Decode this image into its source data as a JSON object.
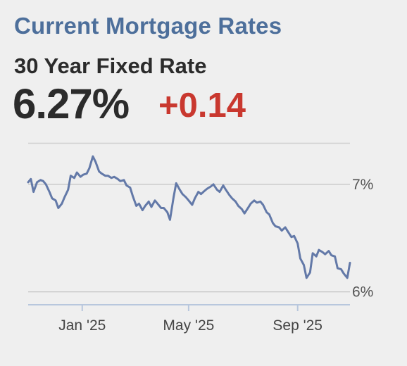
{
  "header": {
    "title": "Current Mortgage Rates",
    "product": "30 Year Fixed Rate",
    "rate": "6.27%",
    "change": "+0.14"
  },
  "colors": {
    "title": "#4d6f9b",
    "change_positive": "#c9382f",
    "line": "#6379a8",
    "text": "#2b2b2b"
  },
  "chart_data": {
    "type": "line",
    "title": "",
    "xlabel": "",
    "ylabel": "",
    "x_tick_labels": [
      "Jan '25",
      "May '25",
      "Sep '25"
    ],
    "x_tick_dates": [
      "2025-01-01",
      "2025-05-01",
      "2025-09-01"
    ],
    "y_tick_labels": [
      "7%",
      "6%"
    ],
    "y_tick_values": [
      7.0,
      6.0
    ],
    "xlim": [
      "2024-11-01",
      "2025-10-30"
    ],
    "ylim": [
      5.88,
      7.34
    ],
    "grid": "horizontal",
    "series": [
      {
        "values": [
          [
            "2024-11-01",
            7.02
          ],
          [
            "2024-11-04",
            7.05
          ],
          [
            "2024-11-07",
            6.93
          ],
          [
            "2024-11-11",
            7.02
          ],
          [
            "2024-11-15",
            7.04
          ],
          [
            "2024-11-18",
            7.03
          ],
          [
            "2024-11-21",
            7.0
          ],
          [
            "2024-11-25",
            6.93
          ],
          [
            "2024-11-28",
            6.87
          ],
          [
            "2024-12-02",
            6.85
          ],
          [
            "2024-12-05",
            6.78
          ],
          [
            "2024-12-09",
            6.82
          ],
          [
            "2024-12-12",
            6.88
          ],
          [
            "2024-12-16",
            6.95
          ],
          [
            "2024-12-19",
            7.08
          ],
          [
            "2024-12-23",
            7.06
          ],
          [
            "2024-12-26",
            7.11
          ],
          [
            "2024-12-30",
            7.07
          ],
          [
            "2025-01-02",
            7.09
          ],
          [
            "2025-01-06",
            7.1
          ],
          [
            "2025-01-09",
            7.15
          ],
          [
            "2025-01-13",
            7.26
          ],
          [
            "2025-01-16",
            7.21
          ],
          [
            "2025-01-20",
            7.12
          ],
          [
            "2025-01-23",
            7.1
          ],
          [
            "2025-01-27",
            7.08
          ],
          [
            "2025-01-30",
            7.08
          ],
          [
            "2025-02-03",
            7.06
          ],
          [
            "2025-02-06",
            7.07
          ],
          [
            "2025-02-10",
            7.05
          ],
          [
            "2025-02-13",
            7.03
          ],
          [
            "2025-02-17",
            7.04
          ],
          [
            "2025-02-20",
            6.99
          ],
          [
            "2025-02-24",
            6.97
          ],
          [
            "2025-02-27",
            6.89
          ],
          [
            "2025-03-03",
            6.8
          ],
          [
            "2025-03-06",
            6.82
          ],
          [
            "2025-03-10",
            6.76
          ],
          [
            "2025-03-13",
            6.8
          ],
          [
            "2025-03-17",
            6.84
          ],
          [
            "2025-03-20",
            6.79
          ],
          [
            "2025-03-24",
            6.85
          ],
          [
            "2025-03-27",
            6.82
          ],
          [
            "2025-03-31",
            6.78
          ],
          [
            "2025-04-03",
            6.78
          ],
          [
            "2025-04-07",
            6.74
          ],
          [
            "2025-04-10",
            6.67
          ],
          [
            "2025-04-14",
            6.88
          ],
          [
            "2025-04-17",
            7.01
          ],
          [
            "2025-04-21",
            6.95
          ],
          [
            "2025-04-24",
            6.91
          ],
          [
            "2025-04-28",
            6.88
          ],
          [
            "2025-05-01",
            6.85
          ],
          [
            "2025-05-05",
            6.81
          ],
          [
            "2025-05-08",
            6.87
          ],
          [
            "2025-05-12",
            6.93
          ],
          [
            "2025-05-15",
            6.91
          ],
          [
            "2025-05-19",
            6.94
          ],
          [
            "2025-05-22",
            6.96
          ],
          [
            "2025-05-26",
            6.98
          ],
          [
            "2025-05-29",
            7.0
          ],
          [
            "2025-06-02",
            6.95
          ],
          [
            "2025-06-05",
            6.93
          ],
          [
            "2025-06-09",
            6.99
          ],
          [
            "2025-06-12",
            6.95
          ],
          [
            "2025-06-16",
            6.9
          ],
          [
            "2025-06-19",
            6.87
          ],
          [
            "2025-06-23",
            6.84
          ],
          [
            "2025-06-26",
            6.8
          ],
          [
            "2025-06-30",
            6.77
          ],
          [
            "2025-07-03",
            6.73
          ],
          [
            "2025-07-07",
            6.78
          ],
          [
            "2025-07-10",
            6.82
          ],
          [
            "2025-07-14",
            6.85
          ],
          [
            "2025-07-17",
            6.83
          ],
          [
            "2025-07-21",
            6.84
          ],
          [
            "2025-07-24",
            6.81
          ],
          [
            "2025-07-28",
            6.74
          ],
          [
            "2025-07-31",
            6.72
          ],
          [
            "2025-08-04",
            6.64
          ],
          [
            "2025-08-07",
            6.61
          ],
          [
            "2025-08-11",
            6.6
          ],
          [
            "2025-08-14",
            6.57
          ],
          [
            "2025-08-18",
            6.6
          ],
          [
            "2025-08-21",
            6.56
          ],
          [
            "2025-08-25",
            6.51
          ],
          [
            "2025-08-28",
            6.52
          ],
          [
            "2025-09-01",
            6.45
          ],
          [
            "2025-09-04",
            6.31
          ],
          [
            "2025-09-08",
            6.25
          ],
          [
            "2025-09-11",
            6.13
          ],
          [
            "2025-09-15",
            6.18
          ],
          [
            "2025-09-18",
            6.36
          ],
          [
            "2025-09-22",
            6.33
          ],
          [
            "2025-09-25",
            6.39
          ],
          [
            "2025-09-29",
            6.37
          ],
          [
            "2025-10-02",
            6.35
          ],
          [
            "2025-10-06",
            6.38
          ],
          [
            "2025-10-09",
            6.34
          ],
          [
            "2025-10-13",
            6.33
          ],
          [
            "2025-10-16",
            6.22
          ],
          [
            "2025-10-20",
            6.21
          ],
          [
            "2025-10-23",
            6.17
          ],
          [
            "2025-10-27",
            6.13
          ],
          [
            "2025-10-30",
            6.27
          ]
        ]
      }
    ]
  }
}
